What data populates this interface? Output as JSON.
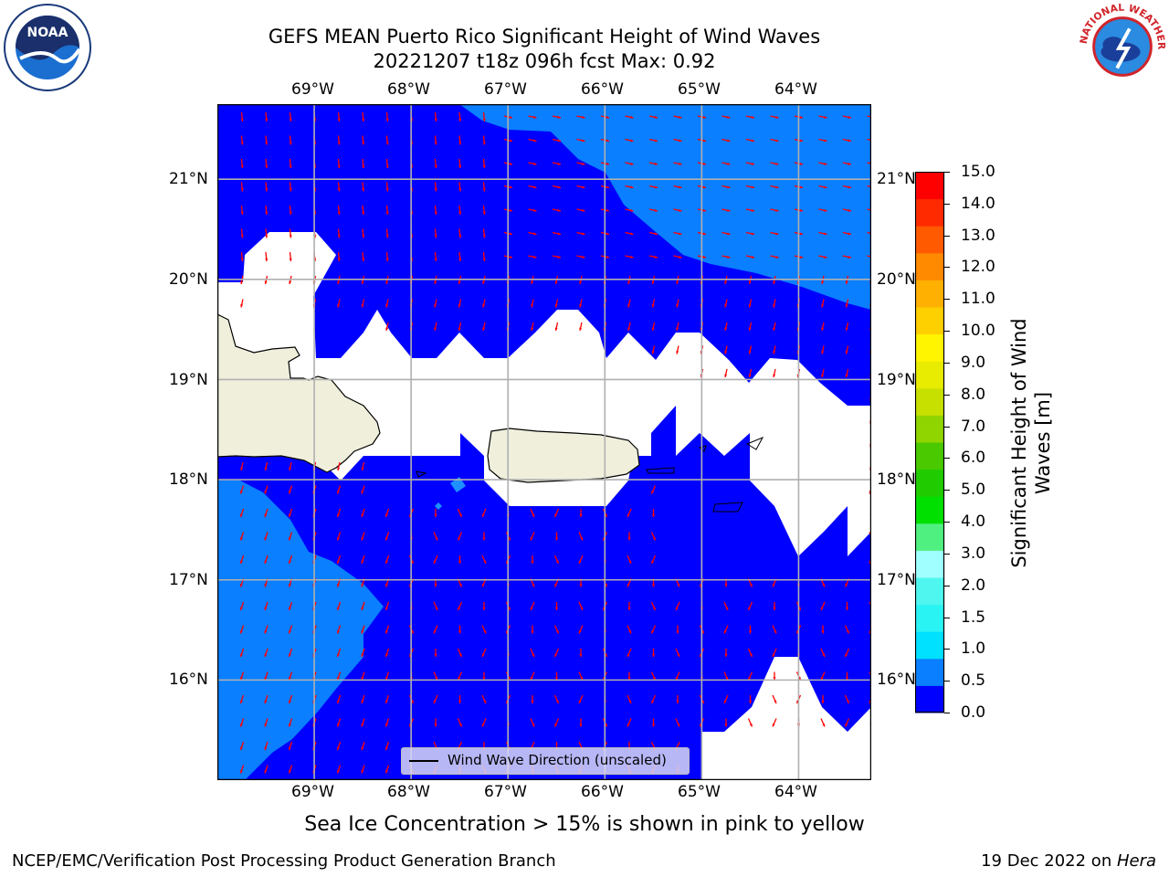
{
  "title": {
    "line1": "GEFS MEAN Puerto Rico Significant Height of Wind Waves",
    "line2": "20221207 t18z 096h fcst   Max: 0.92"
  },
  "map": {
    "lon_labels": [
      "69°W",
      "68°W",
      "67°W",
      "66°W",
      "65°W",
      "64°W"
    ],
    "lat_labels": [
      "21°N",
      "20°N",
      "19°N",
      "18°N",
      "17°N",
      "16°N"
    ],
    "lon_range": [
      -70.0,
      -63.25
    ],
    "lat_range": [
      15.0,
      21.75
    ],
    "land_color": "#efefdc",
    "grid_color": "#b0b0b0",
    "arrow_color": "#ff0000",
    "legend_label": "Wind Wave Direction (unscaled)"
  },
  "colorbar": {
    "label": "Significant Height of Wind Waves [m]",
    "ticks": [
      "15.0",
      "14.0",
      "13.0",
      "12.0",
      "11.0",
      "10.0",
      "9.0",
      "8.0",
      "7.0",
      "6.0",
      "5.0",
      "4.0",
      "3.0",
      "2.0",
      "1.5",
      "1.0",
      "0.5",
      "0.0"
    ],
    "colors": [
      "#0000ff",
      "#0a7fff",
      "#00e0ff",
      "#2af3f3",
      "#4ff6f0",
      "#a0ffff",
      "#50f080",
      "#00e000",
      "#20cc00",
      "#4ac800",
      "#90d400",
      "#c8e000",
      "#e8ec00",
      "#fff500",
      "#ffd000",
      "#ffb000",
      "#ff8a00",
      "#ff5a00",
      "#ff2a00",
      "#ff0000"
    ]
  },
  "ice_note": "Sea Ice Concentration > 15% is shown in pink to yellow",
  "footer": {
    "left": "NCEP/EMC/Verification Post Processing Product Generation Branch",
    "right_prefix": "19 Dec 2022 on ",
    "right_host": "Hera"
  },
  "logos": {
    "noaa": "NOAA",
    "nws": "NATIONAL WEATHER SERVICE"
  }
}
